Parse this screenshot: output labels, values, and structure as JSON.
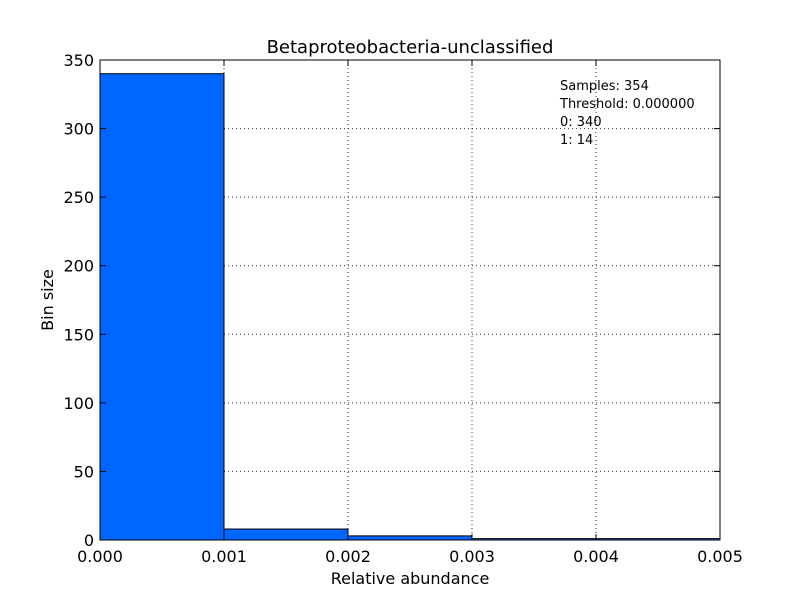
{
  "chart_data": {
    "type": "bar",
    "title": "Betaproteobacteria-unclassified",
    "xlabel": "Relative abundance",
    "ylabel": "Bin size",
    "xlim": [
      0,
      0.005
    ],
    "ylim": [
      0,
      350
    ],
    "grid": true,
    "bin_edges": [
      0.0,
      0.001,
      0.002,
      0.003,
      0.004,
      0.005
    ],
    "values": [
      340,
      8,
      3,
      1,
      1
    ],
    "x_ticks": [
      "0.000",
      "0.001",
      "0.002",
      "0.003",
      "0.004",
      "0.005"
    ],
    "y_ticks": [
      "0",
      "50",
      "100",
      "150",
      "200",
      "250",
      "300",
      "350"
    ],
    "bar_color": "#0066ff",
    "annotation": {
      "position": "top-right",
      "lines": [
        "Samples: 354",
        "Threshold: 0.000000",
        "0: 340",
        "1: 14"
      ]
    }
  }
}
